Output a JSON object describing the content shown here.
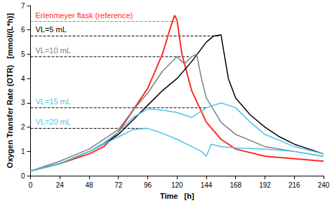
{
  "chart_data": {
    "type": "line",
    "x_label": "Time   [h]",
    "y_label": "Oxygen Transfer Rate (OTR)   [mmol/(L*h)]",
    "xlim": [
      0,
      240
    ],
    "xticks": [
      0,
      24,
      48,
      72,
      96,
      120,
      144,
      168,
      192,
      216,
      240
    ],
    "ylim": [
      0,
      7
    ],
    "yticks": [
      0,
      1,
      2,
      3,
      4,
      5,
      6,
      7
    ],
    "grid": false,
    "series": [
      {
        "name": "Erlenmeyer flask (reference)",
        "color": "#ff2b1f",
        "x": [
          0,
          12,
          24,
          36,
          48,
          60,
          72,
          84,
          96,
          108,
          114,
          118,
          120,
          124,
          132,
          144,
          156,
          168,
          192,
          216,
          240
        ],
        "values": [
          0.2,
          0.35,
          0.5,
          0.7,
          0.9,
          1.2,
          1.8,
          2.7,
          3.6,
          5.0,
          6.0,
          6.6,
          6.4,
          5.0,
          3.5,
          2.2,
          1.5,
          1.1,
          0.8,
          0.7,
          0.6
        ]
      },
      {
        "name": "VL=5 mL",
        "color": "#000000",
        "x": [
          0,
          12,
          24,
          36,
          48,
          60,
          72,
          84,
          96,
          108,
          120,
          132,
          144,
          150,
          156,
          158,
          162,
          168,
          180,
          192,
          204,
          216,
          228,
          240
        ],
        "values": [
          0.2,
          0.35,
          0.5,
          0.75,
          1.0,
          1.3,
          1.7,
          2.3,
          2.9,
          3.5,
          4.0,
          4.7,
          5.5,
          5.75,
          5.8,
          5.2,
          4.0,
          3.2,
          2.5,
          2.0,
          1.6,
          1.3,
          1.1,
          0.9
        ]
      },
      {
        "name": "VL=10 mL",
        "color": "#7f7f7f",
        "x": [
          0,
          12,
          24,
          36,
          48,
          60,
          72,
          84,
          96,
          108,
          120,
          126,
          132,
          136,
          140,
          144,
          156,
          168,
          192,
          216,
          240
        ],
        "values": [
          0.2,
          0.4,
          0.6,
          0.85,
          1.1,
          1.5,
          1.9,
          2.7,
          3.4,
          4.3,
          4.9,
          4.6,
          4.9,
          5.0,
          4.0,
          3.2,
          2.2,
          1.7,
          1.2,
          1.0,
          0.8
        ]
      },
      {
        "name": "VL=15 mL",
        "color": "#4fc3e8",
        "x": [
          0,
          12,
          24,
          36,
          48,
          60,
          72,
          84,
          96,
          108,
          120,
          132,
          144,
          156,
          168,
          180,
          192,
          216,
          240
        ],
        "values": [
          0.2,
          0.35,
          0.5,
          0.75,
          1.0,
          1.35,
          1.8,
          2.4,
          2.75,
          2.7,
          2.6,
          2.4,
          2.8,
          3.0,
          2.8,
          2.2,
          1.7,
          1.2,
          0.9
        ]
      },
      {
        "name": "VL=20 mL",
        "color": "#4fc3e8",
        "x": [
          0,
          12,
          24,
          36,
          48,
          60,
          72,
          84,
          96,
          108,
          120,
          132,
          140,
          144,
          148,
          156,
          168,
          192,
          216,
          240
        ],
        "values": [
          0.2,
          0.35,
          0.5,
          0.75,
          1.0,
          1.3,
          1.6,
          1.9,
          1.95,
          1.75,
          1.5,
          1.2,
          1.0,
          0.8,
          1.3,
          1.2,
          1.15,
          1.1,
          1.0,
          0.8
        ]
      }
    ],
    "annotations": [
      {
        "text": "Erlenmeyer flask (reference)",
        "x": [
          0,
          119
        ],
        "y": 6.35,
        "color": "#33cc33",
        "line_style": "dashed"
      },
      {
        "text": "VL=5 mL",
        "x": [
          0,
          155
        ],
        "y": 5.75,
        "color": "#000000",
        "line_style": "dashed"
      },
      {
        "text": "VL=10 mL",
        "x": [
          0,
          130
        ],
        "y": 4.9,
        "color": "#000000",
        "line_style": "dashed"
      },
      {
        "text": "VL=15 mL",
        "x": [
          0,
          145
        ],
        "y": 2.8,
        "color": "#000000",
        "line_style": "dashed"
      },
      {
        "text": "VL=20 mL",
        "x": [
          0,
          95
        ],
        "y": 1.95,
        "color": "#000000",
        "line_style": "dashed"
      }
    ]
  }
}
